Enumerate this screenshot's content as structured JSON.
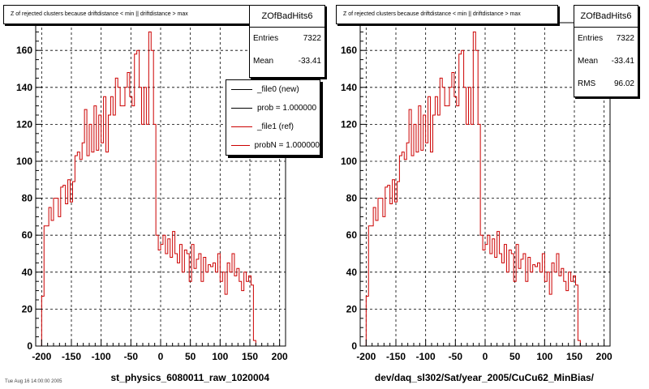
{
  "colors": {
    "new": "#000000",
    "ref": "#cc0000",
    "grid": "#000000"
  },
  "panels": [
    {
      "title": "Z of rejected clusters because driftdistance < min || driftdistance > max",
      "stats": {
        "name": "ZOfBadHits6",
        "rows": [
          {
            "label": "Entries",
            "value": "7322"
          },
          {
            "label": "Mean",
            "value": "-33.41"
          }
        ]
      },
      "xlabel": "st_physics_6080011_raw_1020004",
      "legend": [
        {
          "label": "_file0 (new)",
          "color": "#000000"
        },
        {
          "label": "prob = 1.000000",
          "color": "#000000"
        },
        {
          "label": "_file1 (ref)",
          "color": "#cc0000"
        },
        {
          "label": "probN = 1.000000",
          "color": "#cc0000"
        }
      ]
    },
    {
      "title": "Z of rejected clusters because driftdistance < min || driftdistance > max",
      "stats": {
        "name": "ZOfBadHits6",
        "rows": [
          {
            "label": "Entries",
            "value": "7322"
          },
          {
            "label": "Mean",
            "value": "-33.41"
          },
          {
            "label": "RMS",
            "value": "96.02"
          }
        ]
      },
      "xlabel": "dev/daq_sl302/Sat/year_2005/CuCu62_MinBias/"
    }
  ],
  "bottom_note": "Tue Aug 16 14:00:00 2005",
  "chart_data": {
    "type": "histogram",
    "title": "Z of rejected clusters because driftdistance < min || driftdistance > max",
    "xlim": [
      -210,
      210
    ],
    "ylim": [
      0,
      175
    ],
    "xticks": [
      -200,
      -150,
      -100,
      -50,
      0,
      50,
      100,
      150,
      200
    ],
    "yticks": [
      0,
      20,
      40,
      60,
      80,
      100,
      120,
      140,
      160
    ],
    "grid": true,
    "bin_width": 4,
    "x_start": -200,
    "values": [
      27,
      65,
      65,
      75,
      68,
      80,
      80,
      70,
      86,
      87,
      77,
      90,
      78,
      89,
      103,
      105,
      101,
      110,
      128,
      103,
      120,
      105,
      130,
      106,
      125,
      110,
      135,
      105,
      125,
      135,
      125,
      145,
      140,
      130,
      130,
      140,
      148,
      135,
      130,
      158,
      160,
      140,
      120,
      140,
      120,
      170,
      160,
      120,
      60,
      52,
      55,
      60,
      50,
      58,
      48,
      62,
      50,
      45,
      55,
      40,
      52,
      50,
      35,
      55,
      42,
      47,
      50,
      35,
      48,
      40,
      44,
      43,
      45,
      40,
      50,
      35,
      40,
      28,
      45,
      40,
      50,
      38,
      42,
      35,
      30,
      40,
      35,
      38,
      33,
      3,
      0
    ]
  }
}
